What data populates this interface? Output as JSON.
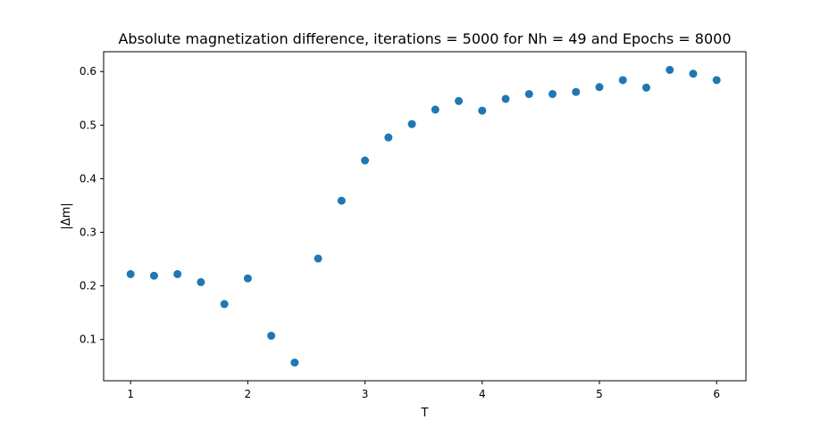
{
  "chart_data": {
    "type": "scatter",
    "title": "Absolute magnetization difference, iterations = 5000 for Nh = 49 and Epochs = 8000",
    "xlabel": "T",
    "ylabel": "|Δm|",
    "xlim": [
      0.77,
      6.25
    ],
    "ylim": [
      0.023,
      0.637
    ],
    "xticks": [
      1,
      2,
      3,
      4,
      5,
      6
    ],
    "yticks": [
      0.1,
      0.2,
      0.3,
      0.4,
      0.5,
      0.6
    ],
    "xtick_labels": [
      "1",
      "2",
      "3",
      "4",
      "5",
      "6"
    ],
    "ytick_labels": [
      "0.1",
      "0.2",
      "0.3",
      "0.4",
      "0.5",
      "0.6"
    ],
    "grid": false,
    "marker_color": "#1f77b4",
    "x": [
      1.0,
      1.2,
      1.4,
      1.6,
      1.8,
      2.0,
      2.2,
      2.4,
      2.6,
      2.8,
      3.0,
      3.2,
      3.4,
      3.6,
      3.8,
      4.0,
      4.2,
      4.4,
      4.6,
      4.8,
      5.0,
      5.2,
      5.4,
      5.6,
      5.8,
      6.0
    ],
    "y": [
      0.222,
      0.219,
      0.222,
      0.207,
      0.166,
      0.214,
      0.107,
      0.057,
      0.251,
      0.359,
      0.434,
      0.477,
      0.502,
      0.529,
      0.545,
      0.527,
      0.549,
      0.558,
      0.558,
      0.562,
      0.571,
      0.584,
      0.57,
      0.603,
      0.596,
      0.584
    ]
  }
}
